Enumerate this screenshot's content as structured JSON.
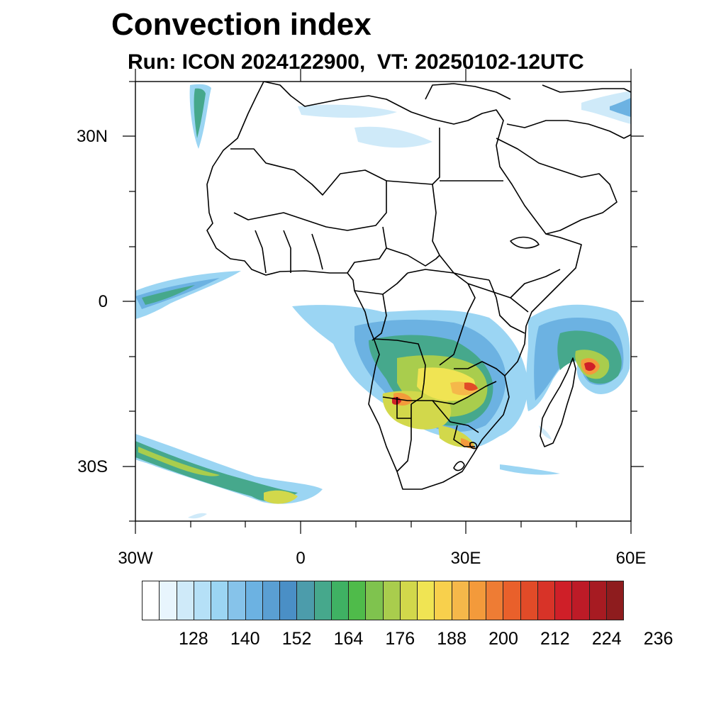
{
  "header": {
    "title": "Convection index",
    "subtitle": "Run: ICON 2024122900,  VT: 20250102-12UTC"
  },
  "map": {
    "projection": "cylindrical-equidistant",
    "lon_range": [
      -30,
      60
    ],
    "lat_range": [
      -40,
      40
    ],
    "latitude_labels": [
      "30N",
      "0",
      "30S"
    ],
    "longitude_labels": [
      "30W",
      "0",
      "30E",
      "60E"
    ],
    "coastline_color": "#000000",
    "border_color": "#000000"
  },
  "colorbar": {
    "colors": [
      "#ffffff",
      "#e8f5fd",
      "#cfeaf9",
      "#b5e0f7",
      "#9bd5f3",
      "#86c3ea",
      "#6cb2e2",
      "#5a9fd3",
      "#4a8fc6",
      "#4c9cab",
      "#46a88c",
      "#3fb163",
      "#4fbb4a",
      "#7fc34e",
      "#a9cd4d",
      "#d2d84b",
      "#f0e453",
      "#f8d04c",
      "#f5b84a",
      "#f39a3b",
      "#ee7c34",
      "#e9602b",
      "#e14b28",
      "#d83328",
      "#cf1f28",
      "#bd1b27",
      "#a71b22",
      "#8e1c1e"
    ],
    "tick_labels": [
      "128",
      "140",
      "152",
      "164",
      "176",
      "188",
      "200",
      "212",
      "224",
      "236"
    ]
  }
}
